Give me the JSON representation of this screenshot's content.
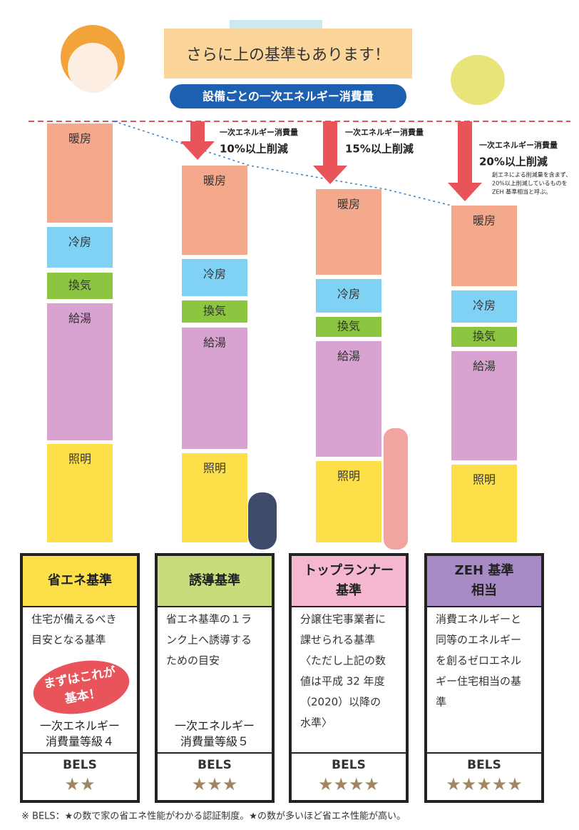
{
  "header": {
    "title": "さらに上の基準もあります！",
    "subtitle": "設備ごとの一次エネルギー消費量"
  },
  "columns": [
    {
      "segments": [
        "暖房",
        "冷房",
        "換気",
        "給湯",
        "照明"
      ]
    },
    {
      "segments": [
        "暖房",
        "冷房",
        "換気",
        "給湯",
        "照明"
      ]
    },
    {
      "segments": [
        "暖房",
        "冷房",
        "換気",
        "給湯",
        "照明"
      ]
    },
    {
      "segments": [
        "暖房",
        "冷房",
        "換気",
        "給湯",
        "照明"
      ]
    }
  ],
  "arrows": [
    {
      "label": "一次エネルギー消費量",
      "reduction": "10%以上削減"
    },
    {
      "label": "一次エネルギー消費量",
      "reduction": "15%以上削減"
    },
    {
      "label": "一次エネルギー消費量",
      "reduction": "20%以上削減",
      "note": [
        "創エネによる削減量を含まず、",
        "20%以上削減しているものを",
        "ZEH 基準相当と呼ぶ。"
      ]
    }
  ],
  "cards": [
    {
      "title": [
        "省エネ基準"
      ],
      "description": [
        "住宅が備えるべき",
        "目安となる基準"
      ],
      "badge": [
        "まずはこれが",
        "基本！"
      ],
      "grade": [
        "一次エネルギー",
        "消費量等級４"
      ],
      "bels": "BELS",
      "stars": "★★"
    },
    {
      "title": [
        "誘導基準"
      ],
      "description": [
        "省エネ基準の１ラ",
        "ンク上へ誘導する",
        "ための目安"
      ],
      "grade": [
        "一次エネルギー",
        "消費量等級５"
      ],
      "bels": "BELS",
      "stars": "★★★"
    },
    {
      "title": [
        "トップランナー",
        "基準"
      ],
      "description": [
        "分譲住宅事業者に",
        "課せられる基準",
        "〈ただし上記の数",
        "値は平成 32 年度",
        "（2020）以降の",
        "水準〉"
      ],
      "bels": "BELS",
      "stars": "★★★★"
    },
    {
      "title": [
        "ZEH 基準",
        "相当"
      ],
      "description": [
        "消費エネルギーと",
        "同等のエネルギー",
        "を創るゼロエネル",
        "ギー住宅相当の基",
        "準"
      ],
      "bels": "BELS",
      "stars": "★★★★★"
    }
  ],
  "footnote": "※ BELS：★の数で家の省エネ性能がわかる認証制度。★の数が多いほど省エネ性能が高い。"
}
